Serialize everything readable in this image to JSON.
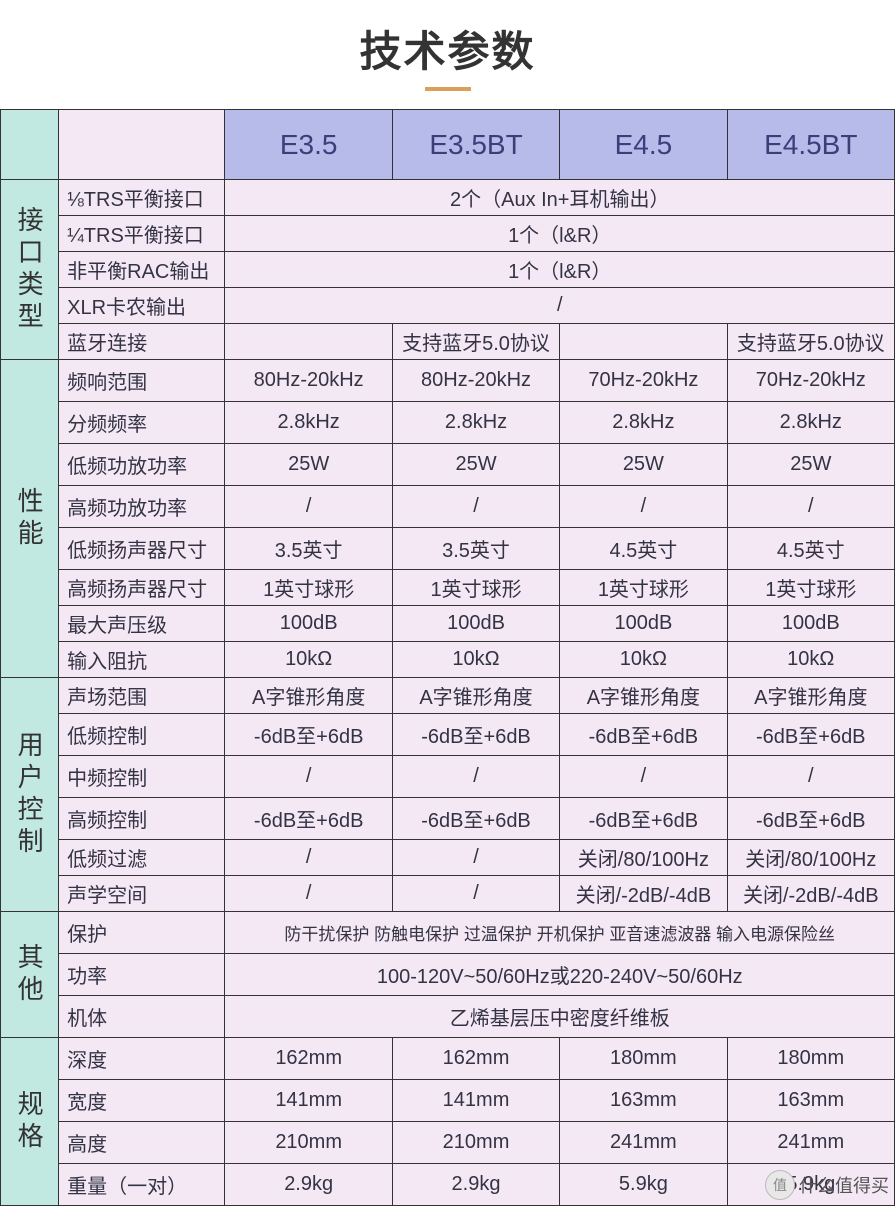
{
  "title": "技术参数",
  "colors": {
    "title_text": "#333333",
    "underline": "#d8a05a",
    "border": "#333333",
    "header_section_bg": "#c2e8e2",
    "header_label_bg": "#f4e8f5",
    "header_product_bg": "#b7bbea",
    "header_product_text": "#3a3f7a",
    "cell_bg": "#f4e8f5",
    "cell_text": "#333344",
    "page_bg": "#ffffff"
  },
  "fonts": {
    "title_size_pt": 32,
    "header_size_pt": 21,
    "section_size_pt": 20,
    "cell_size_pt": 15
  },
  "products": [
    "E3.5",
    "E3.5BT",
    "E4.5",
    "E4.5BT"
  ],
  "sections": [
    {
      "name": "接口类型",
      "rows": [
        {
          "label": "⅛TRS平衡接口",
          "span": true,
          "value": "2个（Aux In+耳机输出）"
        },
        {
          "label": "¼TRS平衡接口",
          "span": true,
          "value": "1个（l&R）"
        },
        {
          "label": "非平衡RAC输出",
          "span": true,
          "value": "1个（l&R）"
        },
        {
          "label": "XLR卡农输出",
          "span": true,
          "value": "/"
        },
        {
          "label": "蓝牙连接",
          "values": [
            "",
            "支持蓝牙5.0协议",
            "",
            "支持蓝牙5.0协议"
          ]
        }
      ]
    },
    {
      "name": "性能",
      "rows": [
        {
          "label": "频响范围",
          "tall": true,
          "values": [
            "80Hz-20kHz",
            "80Hz-20kHz",
            "70Hz-20kHz",
            "70Hz-20kHz"
          ]
        },
        {
          "label": "分频频率",
          "tall": true,
          "values": [
            "2.8kHz",
            "2.8kHz",
            "2.8kHz",
            "2.8kHz"
          ]
        },
        {
          "label": "低频功放功率",
          "tall": true,
          "values": [
            "25W",
            "25W",
            "25W",
            "25W"
          ]
        },
        {
          "label": "高频功放功率",
          "tall": true,
          "values": [
            "/",
            "/",
            "/",
            "/"
          ]
        },
        {
          "label": "低频扬声器尺寸",
          "tall": true,
          "values": [
            "3.5英寸",
            "3.5英寸",
            "4.5英寸",
            "4.5英寸"
          ]
        },
        {
          "label": "高频扬声器尺寸",
          "values": [
            "1英寸球形",
            "1英寸球形",
            "1英寸球形",
            "1英寸球形"
          ]
        },
        {
          "label": "最大声压级",
          "values": [
            "100dB",
            "100dB",
            "100dB",
            "100dB"
          ]
        },
        {
          "label": "输入阻抗",
          "values": [
            "10kΩ",
            "10kΩ",
            "10kΩ",
            "10kΩ"
          ]
        }
      ]
    },
    {
      "name": "用户控制",
      "rows": [
        {
          "label": "声场范围",
          "values": [
            "A字锥形角度",
            "A字锥形角度",
            "A字锥形角度",
            "A字锥形角度"
          ]
        },
        {
          "label": "低频控制",
          "tall": true,
          "values": [
            "-6dB至+6dB",
            "-6dB至+6dB",
            "-6dB至+6dB",
            "-6dB至+6dB"
          ]
        },
        {
          "label": "中频控制",
          "tall": true,
          "values": [
            "/",
            "/",
            "/",
            "/"
          ]
        },
        {
          "label": "高频控制",
          "tall": true,
          "values": [
            "-6dB至+6dB",
            "-6dB至+6dB",
            "-6dB至+6dB",
            "-6dB至+6dB"
          ]
        },
        {
          "label": "低频过滤",
          "values": [
            "/",
            "/",
            "关闭/80/100Hz",
            "关闭/80/100Hz"
          ]
        },
        {
          "label": "声学空间",
          "values": [
            "/",
            "/",
            "关闭/-2dB/-4dB",
            "关闭/-2dB/-4dB"
          ]
        }
      ]
    },
    {
      "name": "其他",
      "rows": [
        {
          "label": "保护",
          "tall": true,
          "span": true,
          "small": true,
          "value": "防干扰保护 防触电保护 过温保护 开机保护 亚音速滤波器 输入电源保险丝"
        },
        {
          "label": "功率",
          "tall": true,
          "span": true,
          "value": "100-120V~50/60Hz或220-240V~50/60Hz"
        },
        {
          "label": "机体",
          "tall": true,
          "span": true,
          "value": "乙烯基层压中密度纤维板"
        }
      ]
    },
    {
      "name": "规格",
      "rows": [
        {
          "label": "深度",
          "tall": true,
          "values": [
            "162mm",
            "162mm",
            "180mm",
            "180mm"
          ]
        },
        {
          "label": "宽度",
          "tall": true,
          "values": [
            "141mm",
            "141mm",
            "163mm",
            "163mm"
          ]
        },
        {
          "label": "高度",
          "tall": true,
          "values": [
            "210mm",
            "210mm",
            "241mm",
            "241mm"
          ]
        },
        {
          "label": "重量（一对）",
          "tall": true,
          "values": [
            "2.9kg",
            "2.9kg",
            "5.9kg",
            "5.9kg"
          ]
        }
      ]
    }
  ],
  "watermark": {
    "badge": "值",
    "text": "什么值得买"
  }
}
